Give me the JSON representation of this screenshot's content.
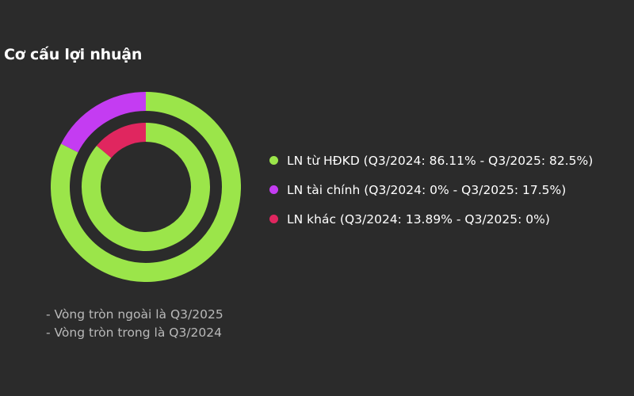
{
  "title": "Cơ cấu lợi nhuận",
  "chart_data": {
    "type": "pie",
    "subtype": "concentric-donut",
    "categories": [
      "LN từ HĐKD",
      "LN tài chính",
      "LN khác"
    ],
    "colors": [
      "#9be54a",
      "#c43cf2",
      "#e0265f"
    ],
    "series": [
      {
        "ring": "outer",
        "period": "Q3/2025",
        "values": [
          82.5,
          17.5,
          0
        ]
      },
      {
        "ring": "inner",
        "period": "Q3/2024",
        "values": [
          86.11,
          0,
          13.89
        ]
      }
    ],
    "legend_position": "right",
    "legend": [
      {
        "label": "LN từ HĐKD (Q3/2024: 86.11% - Q3/2025: 82.5%)",
        "color": "#9be54a"
      },
      {
        "label": "LN tài chính (Q3/2024: 0% - Q3/2025: 17.5%)",
        "color": "#c43cf2"
      },
      {
        "label": "LN khác (Q3/2024: 13.89% - Q3/2025: 0%)",
        "color": "#e0265f"
      }
    ]
  },
  "notes": [
    "- Vòng tròn ngoài là Q3/2025",
    "- Vòng tròn trong là Q3/2024"
  ]
}
